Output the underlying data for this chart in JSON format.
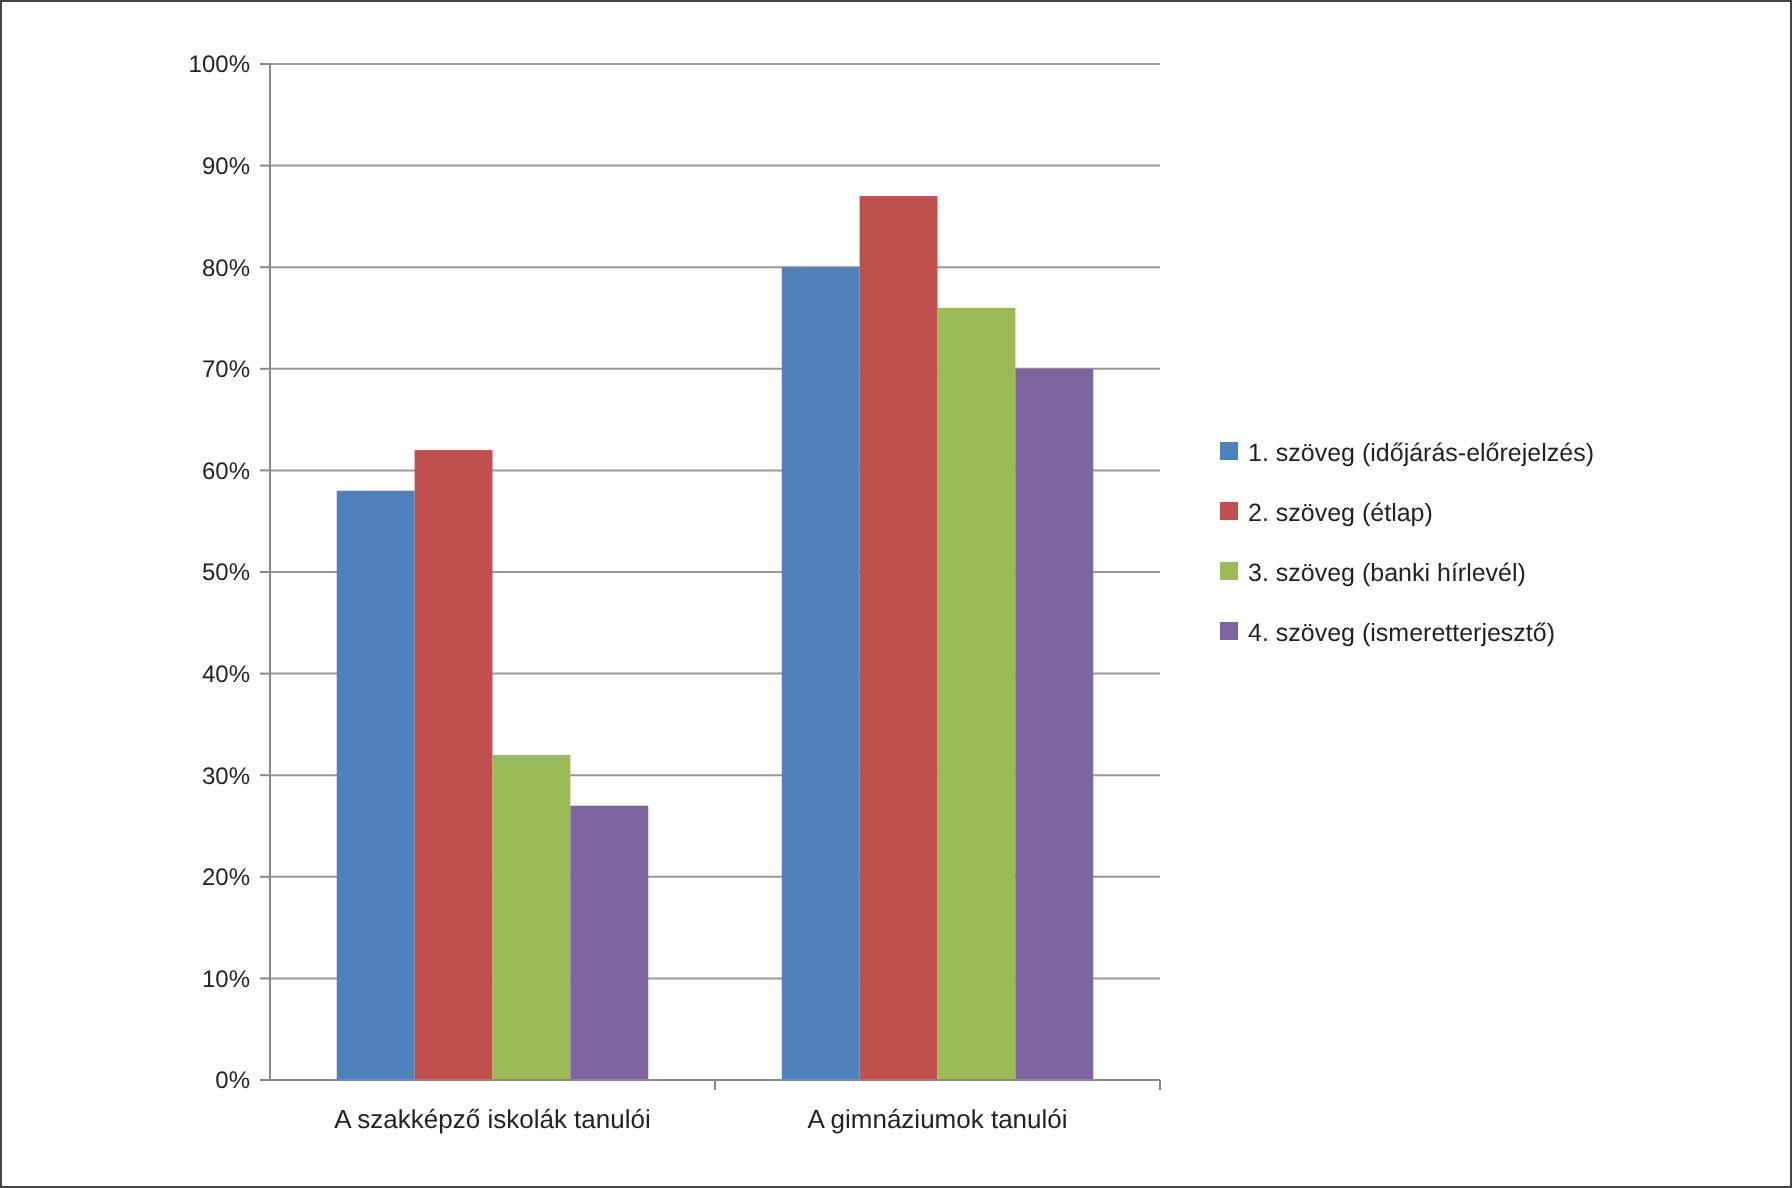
{
  "chart_data": {
    "type": "bar",
    "categories": [
      "A szakképző iskolák tanulói",
      "A gimnáziumok tanulói"
    ],
    "series": [
      {
        "name": "1. szöveg (időjárás-előrejelzés)",
        "color": "#4f81bd",
        "values": [
          58,
          80
        ]
      },
      {
        "name": "2. szöveg (étlap)",
        "color": "#c0504d",
        "values": [
          62,
          87
        ]
      },
      {
        "name": "3. szöveg (banki hírlevél)",
        "color": "#9bbb59",
        "values": [
          32,
          76
        ]
      },
      {
        "name": "4. szöveg (ismeretterjesztő)",
        "color": "#8064a2",
        "values": [
          27,
          70
        ]
      }
    ],
    "ylim": [
      0,
      100
    ],
    "yticks": [
      {
        "value": 0,
        "label": "0%"
      },
      {
        "value": 10,
        "label": "10%"
      },
      {
        "value": 20,
        "label": "20%"
      },
      {
        "value": 30,
        "label": "30%"
      },
      {
        "value": 40,
        "label": "40%"
      },
      {
        "value": 50,
        "label": "50%"
      },
      {
        "value": 60,
        "label": "60%"
      },
      {
        "value": 70,
        "label": "70%"
      },
      {
        "value": 80,
        "label": "80%"
      },
      {
        "value": 90,
        "label": "90%"
      },
      {
        "value": 100,
        "label": "100%"
      }
    ],
    "grid": "y",
    "legend": "right"
  }
}
